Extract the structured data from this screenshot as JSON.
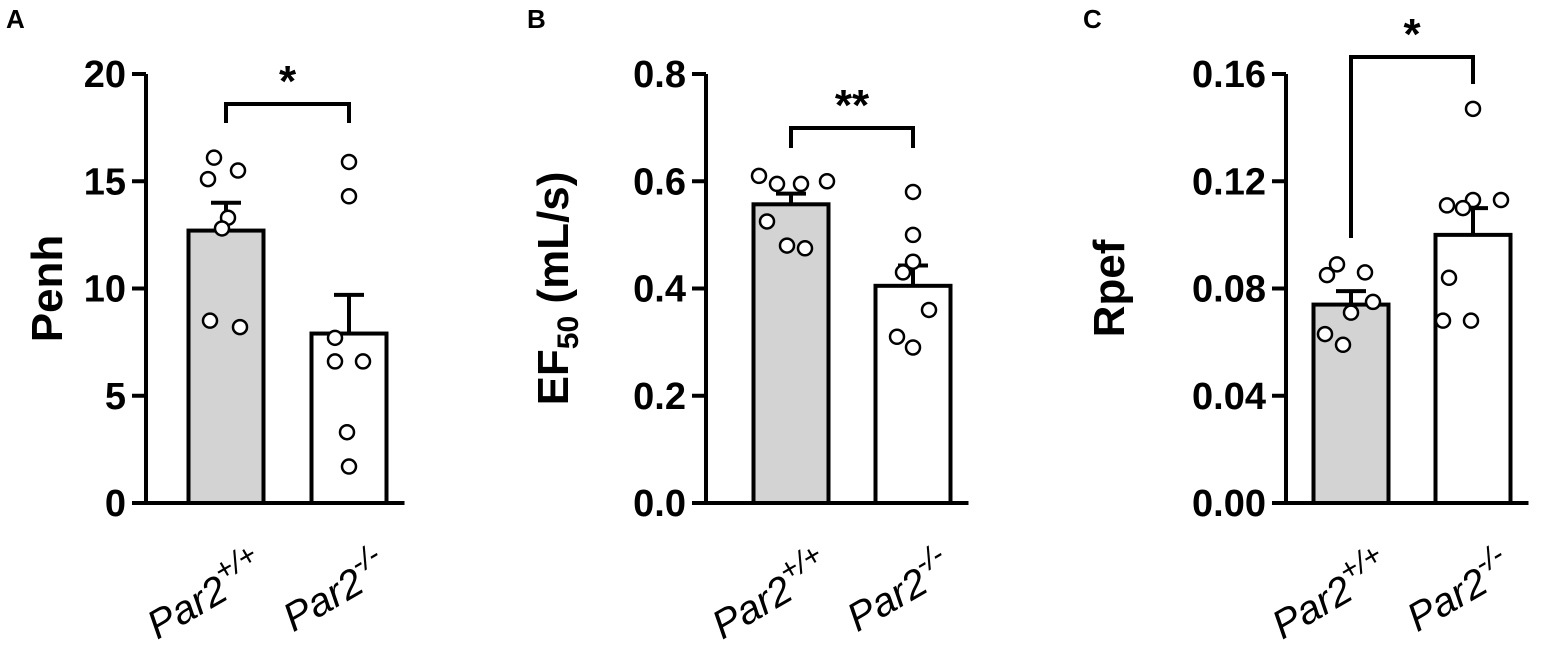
{
  "chart_data": [
    {
      "type": "bar",
      "panel": "A",
      "ylabel": "Penh",
      "ylim": [
        0,
        20
      ],
      "yticks": [
        0,
        5,
        10,
        15,
        20
      ],
      "ytick_labels": [
        "0",
        "5",
        "10",
        "15",
        "20"
      ],
      "categories": [
        {
          "base": "Par2",
          "sup": "+/+"
        },
        {
          "base": "Par2",
          "sup": "-/-"
        }
      ],
      "bar_colors": [
        "#d3d3d3",
        "#ffffff"
      ],
      "means": [
        12.7,
        7.9
      ],
      "sem": [
        1.3,
        1.8
      ],
      "points": [
        [
          16.1,
          15.5,
          15.1,
          13.3,
          12.8,
          8.5,
          8.2
        ],
        [
          15.9,
          14.3,
          7.7,
          6.6,
          6.6,
          3.3,
          1.7
        ]
      ],
      "significance": "*"
    },
    {
      "type": "bar",
      "panel": "B",
      "ylabel": {
        "base": "EF",
        "sub": "50",
        "rest": " (mL/s)"
      },
      "ylim": [
        0,
        0.8
      ],
      "yticks": [
        0,
        0.2,
        0.4,
        0.6,
        0.8
      ],
      "ytick_labels": [
        "0.0",
        "0.2",
        "0.4",
        "0.6",
        "0.8"
      ],
      "categories": [
        {
          "base": "Par2",
          "sup": "+/+"
        },
        {
          "base": "Par2",
          "sup": "-/-"
        }
      ],
      "bar_colors": [
        "#d3d3d3",
        "#ffffff"
      ],
      "means": [
        0.557,
        0.405
      ],
      "sem": [
        0.02,
        0.038
      ],
      "points": [
        [
          0.61,
          0.595,
          0.595,
          0.6,
          0.525,
          0.48,
          0.475
        ],
        [
          0.58,
          0.5,
          0.45,
          0.43,
          0.36,
          0.31,
          0.29
        ]
      ],
      "significance": "**"
    },
    {
      "type": "bar",
      "panel": "C",
      "ylabel": "Rpef",
      "ylim": [
        0,
        0.16
      ],
      "yticks": [
        0,
        0.04,
        0.08,
        0.12,
        0.16
      ],
      "ytick_labels": [
        "0.00",
        "0.04",
        "0.08",
        "0.12",
        "0.16"
      ],
      "categories": [
        {
          "base": "Par2",
          "sup": "+/+"
        },
        {
          "base": "Par2",
          "sup": "-/-"
        }
      ],
      "bar_colors": [
        "#d3d3d3",
        "#ffffff"
      ],
      "means": [
        0.074,
        0.1
      ],
      "sem": [
        0.005,
        0.01
      ],
      "points": [
        [
          0.089,
          0.086,
          0.085,
          0.075,
          0.071,
          0.063,
          0.059
        ],
        [
          0.147,
          0.113,
          0.113,
          0.111,
          0.11,
          0.084,
          0.068,
          0.068
        ]
      ],
      "significance": "*"
    }
  ]
}
